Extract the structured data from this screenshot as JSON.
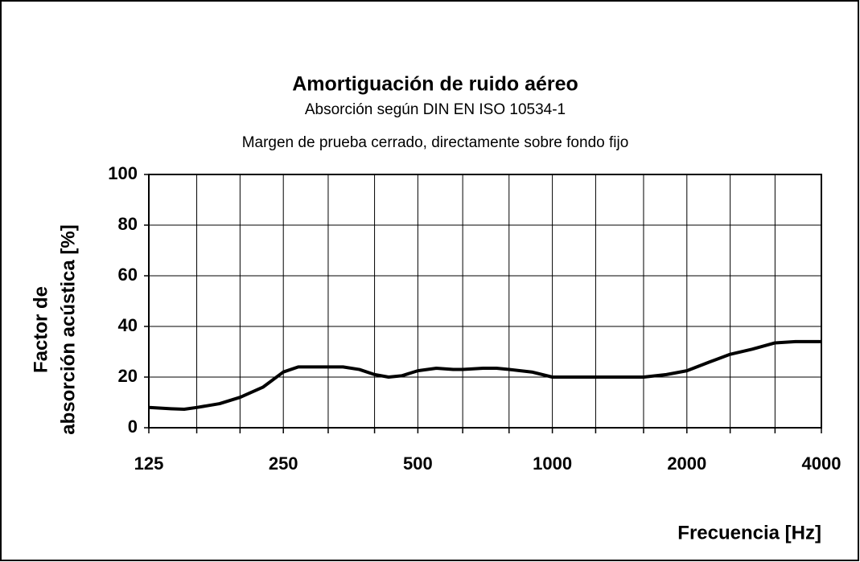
{
  "chart_data": {
    "type": "line",
    "title": "Amortiguación de ruido aéreo",
    "subtitle": [
      "Absorción según DIN EN ISO 10534-1",
      "Margen de prueba cerrado, directamente sobre fondo fijo"
    ],
    "ylabel": [
      "Factor de",
      "absorción acústica [%]"
    ],
    "xlabel": "Frecuencia [Hz]",
    "xscale": "log",
    "xlim": [
      125,
      4000
    ],
    "xticks": [
      125,
      250,
      500,
      1000,
      2000,
      4000
    ],
    "xminorticks": [
      160,
      200,
      315,
      400,
      630,
      800,
      1250,
      1600,
      2500,
      3150
    ],
    "ylim": [
      0,
      100
    ],
    "yticks": [
      0,
      20,
      40,
      60,
      80,
      100
    ],
    "grid": true,
    "series": [
      {
        "color": "#000000",
        "x": [
          125,
          140,
          150,
          160,
          180,
          200,
          225,
          250,
          270,
          315,
          340,
          370,
          400,
          430,
          460,
          500,
          550,
          600,
          630,
          700,
          750,
          800,
          900,
          1000,
          1250,
          1600,
          1800,
          2000,
          2250,
          2500,
          2800,
          3150,
          3500,
          4000
        ],
        "values": [
          8,
          7.5,
          7.3,
          8,
          9.5,
          12,
          16,
          22,
          24,
          24,
          24,
          23,
          21,
          20,
          20.5,
          22.5,
          23.5,
          23,
          23,
          23.5,
          23.5,
          23,
          22,
          20,
          20,
          20,
          21,
          22.5,
          26,
          29,
          31,
          33.5,
          34,
          34
        ]
      }
    ]
  }
}
